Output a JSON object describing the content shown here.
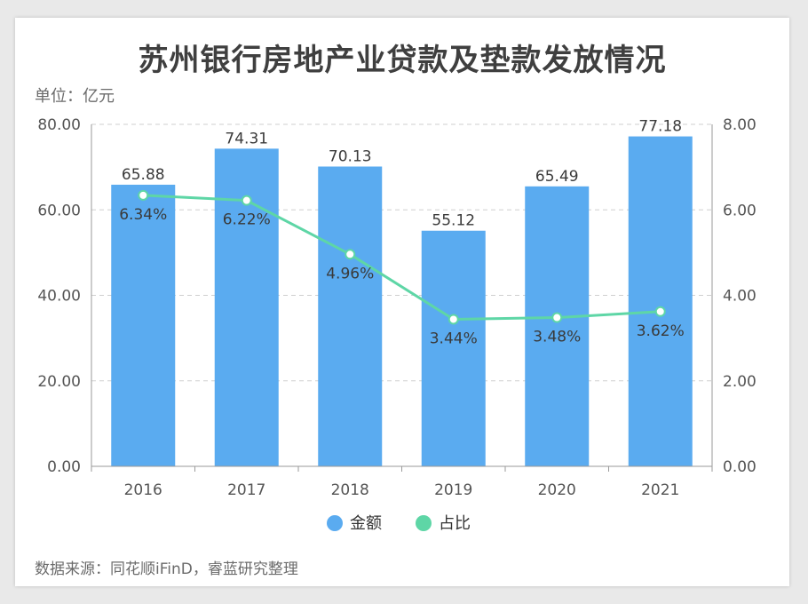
{
  "header": {
    "title": "苏州银行房地产业贷款及垫款发放情况",
    "unit": "单位：亿元"
  },
  "footer": {
    "source": "数据来源：同花顺iFinD，睿蓝研究整理"
  },
  "chart_data": {
    "type": "bar",
    "categories": [
      "2016",
      "2017",
      "2018",
      "2019",
      "2020",
      "2021"
    ],
    "series": [
      {
        "name": "金额",
        "type": "bar",
        "axis": "left",
        "color": "#5aabf0",
        "values": [
          65.88,
          74.31,
          70.13,
          55.12,
          65.49,
          77.18
        ],
        "labels": [
          "65.88",
          "74.31",
          "70.13",
          "55.12",
          "65.49",
          "77.18"
        ]
      },
      {
        "name": "占比",
        "type": "line",
        "axis": "right",
        "color": "#5ed6a6",
        "values": [
          6.34,
          6.22,
          4.96,
          3.44,
          3.48,
          3.62
        ],
        "labels": [
          "6.34%",
          "6.22%",
          "4.96%",
          "3.44%",
          "3.48%",
          "3.62%"
        ]
      }
    ],
    "y_left": {
      "ylim": [
        0,
        80
      ],
      "ticks": [
        "0.00",
        "20.00",
        "40.00",
        "60.00",
        "80.00"
      ]
    },
    "y_right": {
      "ylim": [
        0,
        8
      ],
      "ticks": [
        "0.00",
        "2.00",
        "4.00",
        "6.00",
        "8.00"
      ]
    },
    "grid": true,
    "legend": "bottom-center"
  }
}
